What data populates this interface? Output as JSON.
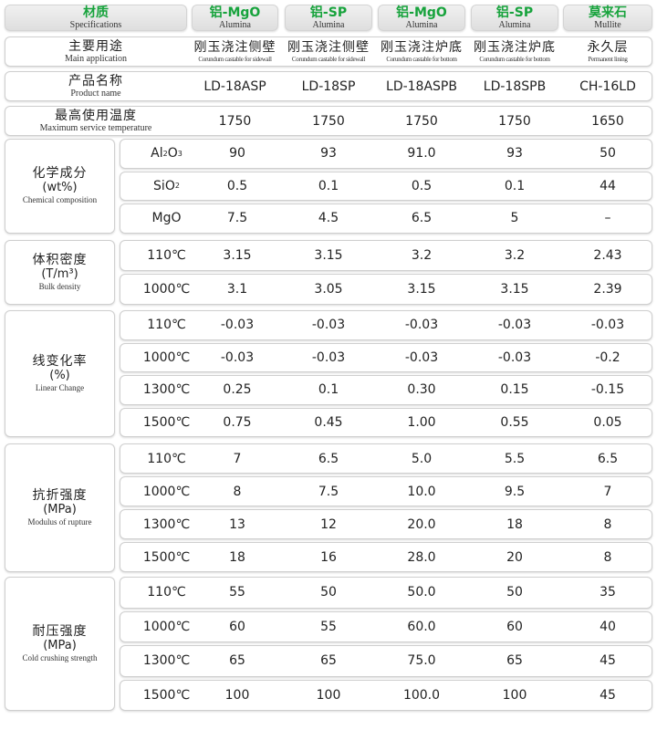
{
  "header": {
    "spec": {
      "zh": "材质",
      "en": "Specifications"
    },
    "columns": [
      {
        "zh": "铝-MgO",
        "en": "Alumina"
      },
      {
        "zh": "铝-SP",
        "en": "Alumina"
      },
      {
        "zh": "铝-MgO",
        "en": "Alumina"
      },
      {
        "zh": "铝-SP",
        "en": "Alumina"
      },
      {
        "zh": "莫来石",
        "en": "Mullite"
      }
    ],
    "accent_color": "#17a33c"
  },
  "main_application": {
    "zh": "主要用途",
    "en": "Main application",
    "values": [
      {
        "zh": "刚玉浇注侧壁",
        "en": "Corundum castable for sidewall"
      },
      {
        "zh": "刚玉浇注侧壁",
        "en": "Corundum castable for sidewall"
      },
      {
        "zh": "刚玉浇注炉底",
        "en": "Corundum castable for bottom"
      },
      {
        "zh": "刚玉浇注炉底",
        "en": "Corundum castable for bottom"
      },
      {
        "zh": "永久层",
        "en": "Permanent lining"
      }
    ]
  },
  "product_name": {
    "zh": "产品名称",
    "en": "Product name",
    "values": [
      "LD-18ASP",
      "LD-18SP",
      "LD-18ASPB",
      "LD-18SPB",
      "CH-16LD"
    ]
  },
  "max_temp": {
    "zh": "最高使用温度",
    "en": "Maximum service temperature",
    "values": [
      "1750",
      "1750",
      "1750",
      "1750",
      "1650"
    ]
  },
  "groups": [
    {
      "zh": "化学成分",
      "unit": "(wt%)",
      "en": "Chemical composition",
      "rows": [
        {
          "label": "Al",
          "sub1": "2",
          "label2": "O",
          "sub2": "3",
          "values": [
            "90",
            "93",
            "91.0",
            "93",
            "50"
          ]
        },
        {
          "label": "SiO",
          "sub1": "2",
          "values": [
            "0.5",
            "0.1",
            "0.5",
            "0.1",
            "44"
          ]
        },
        {
          "label": "MgO",
          "values": [
            "7.5",
            "4.5",
            "6.5",
            "5",
            "–"
          ]
        }
      ]
    },
    {
      "zh": "体积密度",
      "unit": "(T/m³)",
      "en": "Bulk density",
      "rows": [
        {
          "label": "110℃",
          "values": [
            "3.15",
            "3.15",
            "3.2",
            "3.2",
            "2.43"
          ]
        },
        {
          "label": "1000℃",
          "values": [
            "3.1",
            "3.05",
            "3.15",
            "3.15",
            "2.39"
          ]
        }
      ]
    },
    {
      "zh": "线变化率",
      "unit": "(%)",
      "en": "Linear Change",
      "rows": [
        {
          "label": "110℃",
          "values": [
            "-0.03",
            "-0.03",
            "-0.03",
            "-0.03",
            "-0.03"
          ]
        },
        {
          "label": "1000℃",
          "values": [
            "-0.03",
            "-0.03",
            "-0.03",
            "-0.03",
            "-0.2"
          ]
        },
        {
          "label": "1300℃",
          "values": [
            "0.25",
            "0.1",
            "0.30",
            "0.15",
            "-0.15"
          ]
        },
        {
          "label": "1500℃",
          "values": [
            "0.75",
            "0.45",
            "1.00",
            "0.55",
            "0.05"
          ]
        }
      ]
    },
    {
      "zh": "抗折强度",
      "unit": "(MPa)",
      "en": "Modulus of rupture",
      "rows": [
        {
          "label": "110℃",
          "values": [
            "7",
            "6.5",
            "5.0",
            "5.5",
            "6.5"
          ]
        },
        {
          "label": "1000℃",
          "values": [
            "8",
            "7.5",
            "10.0",
            "9.5",
            "7"
          ]
        },
        {
          "label": "1300℃",
          "values": [
            "13",
            "12",
            "20.0",
            "18",
            "8"
          ]
        },
        {
          "label": "1500℃",
          "values": [
            "18",
            "16",
            "28.0",
            "20",
            "8"
          ]
        }
      ]
    },
    {
      "zh": "耐压强度",
      "unit": "(MPa)",
      "en": "Cold crushing strength",
      "rows": [
        {
          "label": "110℃",
          "values": [
            "55",
            "50",
            "50.0",
            "50",
            "35"
          ]
        },
        {
          "label": "1000℃",
          "values": [
            "60",
            "55",
            "60.0",
            "60",
            "40"
          ]
        },
        {
          "label": "1300℃",
          "values": [
            "65",
            "65",
            "75.0",
            "65",
            "45"
          ]
        },
        {
          "label": "1500℃",
          "values": [
            "100",
            "100",
            "100.0",
            "100",
            "45"
          ]
        }
      ]
    }
  ]
}
